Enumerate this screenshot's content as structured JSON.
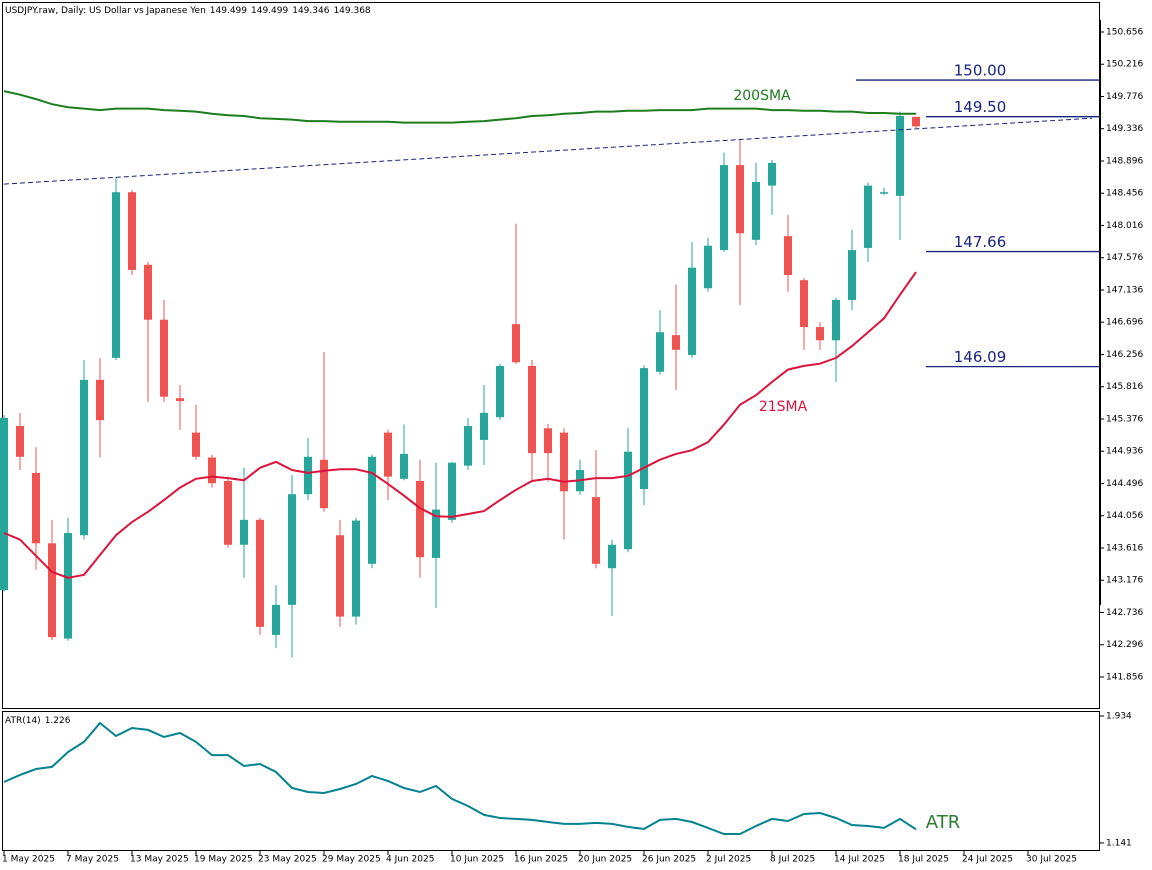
{
  "chart_data": [
    {
      "type": "candlestick",
      "title": "USDJPY.raw, Daily:  US Dollar vs Japanese Yen",
      "x": [
        0,
        1,
        2,
        3,
        4,
        5,
        6,
        7,
        8,
        9,
        10,
        11,
        12,
        13,
        14,
        15,
        16,
        17,
        18,
        19,
        20,
        21,
        22,
        23,
        24,
        25,
        26,
        27,
        28,
        29,
        30,
        31,
        32,
        33,
        34,
        35,
        36,
        37,
        38,
        39,
        40,
        41,
        42,
        43,
        44,
        45,
        46,
        47,
        48,
        49,
        50,
        51,
        52,
        53,
        54,
        55,
        56,
        57
      ],
      "open": [
        143.04,
        145.28,
        144.64,
        143.68,
        142.38,
        143.79,
        145.91,
        146.21,
        148.47,
        147.48,
        146.73,
        145.66,
        145.19,
        144.85,
        144.53,
        143.66,
        144.0,
        142.43,
        142.84,
        144.35,
        144.82,
        143.79,
        142.68,
        143.4,
        145.19,
        144.56,
        144.53,
        143.48,
        144.0,
        144.74,
        145.09,
        145.4,
        146.67,
        146.1,
        145.25,
        145.19,
        144.39,
        144.31,
        143.34,
        143.6,
        144.42,
        146.02,
        146.52,
        146.25,
        147.16,
        147.68,
        148.84,
        147.82,
        148.56,
        147.87,
        147.27,
        146.63,
        146.45,
        147.0,
        147.71,
        148.45,
        148.42,
        149.499
      ],
      "high": [
        145.43,
        145.46,
        144.99,
        144.0,
        144.03,
        146.18,
        146.21,
        148.67,
        148.5,
        147.52,
        147.0,
        145.84,
        145.57,
        144.89,
        144.59,
        144.71,
        144.03,
        143.11,
        144.61,
        145.12,
        146.29,
        144.0,
        144.03,
        144.89,
        145.23,
        145.3,
        144.82,
        144.78,
        144.79,
        145.39,
        145.84,
        146.13,
        148.04,
        146.18,
        145.31,
        145.25,
        144.82,
        144.95,
        143.73,
        145.25,
        146.11,
        146.86,
        147.21,
        147.79,
        147.85,
        149.01,
        149.18,
        148.87,
        148.91,
        148.16,
        147.3,
        146.7,
        147.03,
        147.96,
        148.6,
        148.53,
        149.57,
        149.499
      ],
      "low": [
        143.02,
        144.68,
        143.32,
        142.36,
        142.35,
        143.73,
        144.85,
        146.18,
        147.34,
        145.61,
        145.61,
        145.23,
        144.82,
        144.44,
        143.62,
        143.21,
        142.43,
        142.25,
        142.12,
        144.27,
        144.11,
        142.54,
        142.57,
        143.34,
        144.27,
        144.54,
        143.21,
        142.8,
        143.96,
        144.68,
        144.75,
        145.36,
        146.13,
        144.54,
        144.52,
        143.73,
        144.34,
        143.34,
        142.69,
        143.56,
        144.2,
        145.98,
        145.77,
        146.21,
        147.11,
        147.66,
        146.93,
        147.75,
        148.16,
        147.11,
        146.32,
        146.32,
        145.88,
        146.86,
        147.52,
        148.43,
        147.82,
        149.346
      ],
      "close": [
        145.39,
        144.86,
        143.68,
        142.4,
        143.82,
        145.91,
        145.36,
        148.47,
        147.41,
        146.73,
        145.68,
        145.62,
        144.86,
        144.5,
        143.66,
        144.0,
        142.54,
        142.84,
        144.35,
        144.86,
        144.16,
        142.68,
        143.99,
        144.86,
        144.59,
        144.9,
        143.49,
        144.14,
        144.78,
        145.28,
        145.46,
        146.1,
        146.15,
        144.91,
        144.91,
        144.39,
        144.68,
        143.4,
        143.66,
        144.93,
        146.07,
        146.56,
        146.32,
        147.44,
        147.74,
        148.84,
        147.91,
        148.61,
        148.87,
        147.34,
        146.63,
        146.45,
        147.0,
        147.68,
        148.56,
        148.47,
        149.51,
        149.368
      ],
      "up_color": "#26a69a",
      "down_color": "#ef5350",
      "series": [
        {
          "name": "200SMA",
          "color": "#1b7d1b",
          "values": [
            149.85,
            149.8,
            149.74,
            149.67,
            149.63,
            149.61,
            149.59,
            149.61,
            149.61,
            149.61,
            149.59,
            149.58,
            149.57,
            149.54,
            149.52,
            149.51,
            149.48,
            149.47,
            149.46,
            149.44,
            149.44,
            149.43,
            149.43,
            149.43,
            149.43,
            149.42,
            149.42,
            149.42,
            149.42,
            149.43,
            149.44,
            149.46,
            149.48,
            149.51,
            149.52,
            149.54,
            149.55,
            149.57,
            149.57,
            149.58,
            149.58,
            149.59,
            149.59,
            149.59,
            149.61,
            149.61,
            149.61,
            149.61,
            149.59,
            149.59,
            149.58,
            149.58,
            149.57,
            149.57,
            149.55,
            149.55,
            149.54,
            149.54
          ]
        },
        {
          "name": "21SMA",
          "color": "#dc143c",
          "values": [
            143.82,
            143.73,
            143.51,
            143.29,
            143.21,
            143.25,
            143.52,
            143.79,
            143.97,
            144.11,
            144.27,
            144.44,
            144.56,
            144.59,
            144.57,
            144.54,
            144.71,
            144.79,
            144.68,
            144.64,
            144.67,
            144.69,
            144.69,
            144.64,
            144.49,
            144.33,
            144.16,
            144.05,
            144.04,
            144.08,
            144.12,
            144.27,
            144.41,
            144.53,
            144.56,
            144.52,
            144.54,
            144.57,
            144.57,
            144.6,
            144.71,
            144.82,
            144.9,
            144.95,
            145.06,
            145.3,
            145.57,
            145.7,
            145.88,
            146.05,
            146.1,
            146.13,
            146.21,
            146.37,
            146.56,
            146.75,
            147.07,
            147.38
          ]
        }
      ],
      "trendline": {
        "x": [
          0,
          68
        ],
        "values": [
          148.58,
          149.48
        ],
        "color": "#1a237e",
        "dashed": true
      },
      "levels": {
        "values": [
          150,
          149.5,
          147.66,
          146.09
        ],
        "value_labels": [
          "150.00",
          "149.50",
          "147.66",
          "146.09"
        ],
        "color": "#1a237e"
      },
      "xlim": [
        -0.125,
        68.5
      ],
      "xticks": [
        {
          "value": 0,
          "label": "1 May 2025"
        },
        {
          "value": 4,
          "label": "7 May 2025"
        },
        {
          "value": 8,
          "label": "13 May 2025"
        },
        {
          "value": 12,
          "label": "19 May 2025"
        },
        {
          "value": 16,
          "label": "23 May 2025"
        },
        {
          "value": 20,
          "label": "29 May 2025"
        },
        {
          "value": 24,
          "label": "4 Jun 2025"
        },
        {
          "value": 28,
          "label": "10 Jun 2025"
        },
        {
          "value": 32,
          "label": "16 Jun 2025"
        },
        {
          "value": 36,
          "label": "20 Jun 2025"
        },
        {
          "value": 40,
          "label": "26 Jun 2025"
        },
        {
          "value": 44,
          "label": "2 Jul 2025"
        },
        {
          "value": 48,
          "label": "8 Jul 2025"
        },
        {
          "value": 52,
          "label": "14 Jul 2025"
        },
        {
          "value": 56,
          "label": "18 Jul 2025"
        },
        {
          "value": 60,
          "label": "24 Jul 2025"
        },
        {
          "value": 64,
          "label": "30 Jul 2025"
        }
      ],
      "ylim": [
        141.433,
        151.065
      ],
      "yticks": [
        150.656,
        150.216,
        149.776,
        149.336,
        148.896,
        148.456,
        148.016,
        147.576,
        147.136,
        146.696,
        146.256,
        145.816,
        145.376,
        144.936,
        144.496,
        144.056,
        143.616,
        143.176,
        142.736,
        142.296,
        141.856
      ]
    },
    {
      "type": "line",
      "name": "ATR(14)",
      "annotation": "ATR",
      "color": "#00838f",
      "annotation_color": "#2e7d32",
      "values": [
        1.522,
        1.566,
        1.603,
        1.616,
        1.709,
        1.772,
        1.89,
        1.809,
        1.859,
        1.847,
        1.803,
        1.828,
        1.772,
        1.69,
        1.69,
        1.622,
        1.634,
        1.584,
        1.484,
        1.459,
        1.453,
        1.478,
        1.509,
        1.559,
        1.528,
        1.484,
        1.459,
        1.497,
        1.416,
        1.372,
        1.316,
        1.297,
        1.291,
        1.285,
        1.272,
        1.26,
        1.26,
        1.266,
        1.26,
        1.241,
        1.228,
        1.285,
        1.291,
        1.272,
        1.235,
        1.197,
        1.197,
        1.247,
        1.291,
        1.278,
        1.322,
        1.328,
        1.297,
        1.253,
        1.247,
        1.235,
        1.291,
        1.226
      ],
      "ylim": [
        1.097,
        1.959
      ],
      "yticks": [
        1.934,
        1.141
      ]
    }
  ]
}
